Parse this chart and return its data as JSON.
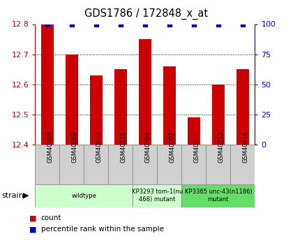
{
  "title": "GDS1786 / 172848_x_at",
  "samples": [
    "GSM40308",
    "GSM40309",
    "GSM40310",
    "GSM40311",
    "GSM40306",
    "GSM40307",
    "GSM40312",
    "GSM40313",
    "GSM40314"
  ],
  "count_values": [
    12.8,
    12.7,
    12.63,
    12.65,
    12.75,
    12.66,
    12.49,
    12.6,
    12.65
  ],
  "percentile_values": [
    100,
    100,
    100,
    100,
    100,
    100,
    100,
    100,
    100
  ],
  "ylim_left": [
    12.4,
    12.8
  ],
  "ylim_right": [
    0,
    100
  ],
  "yticks_left": [
    12.4,
    12.5,
    12.6,
    12.7,
    12.8
  ],
  "yticks_right": [
    0,
    25,
    50,
    75,
    100
  ],
  "bar_color": "#cc0000",
  "dot_color": "#0000cc",
  "dot_size": 5,
  "groups": [
    {
      "label": "wildtype",
      "start": 0,
      "end": 3,
      "color": "#ccffcc"
    },
    {
      "label": "KP3293 tom-1(nu\n468) mutant",
      "start": 4,
      "end": 5,
      "color": "#ccffcc"
    },
    {
      "label": "KP3365 unc-43(n1186)\nmutant",
      "start": 6,
      "end": 8,
      "color": "#66dd66"
    }
  ],
  "strain_label": "strain",
  "legend_count_label": "count",
  "legend_pct_label": "percentile rank within the sample",
  "background_color": "#ffffff",
  "tick_color_left": "#cc0000",
  "tick_color_right": "#0000cc",
  "bar_width": 0.5,
  "cell_bg": "#d0d0d0",
  "cell_border": "#888888"
}
